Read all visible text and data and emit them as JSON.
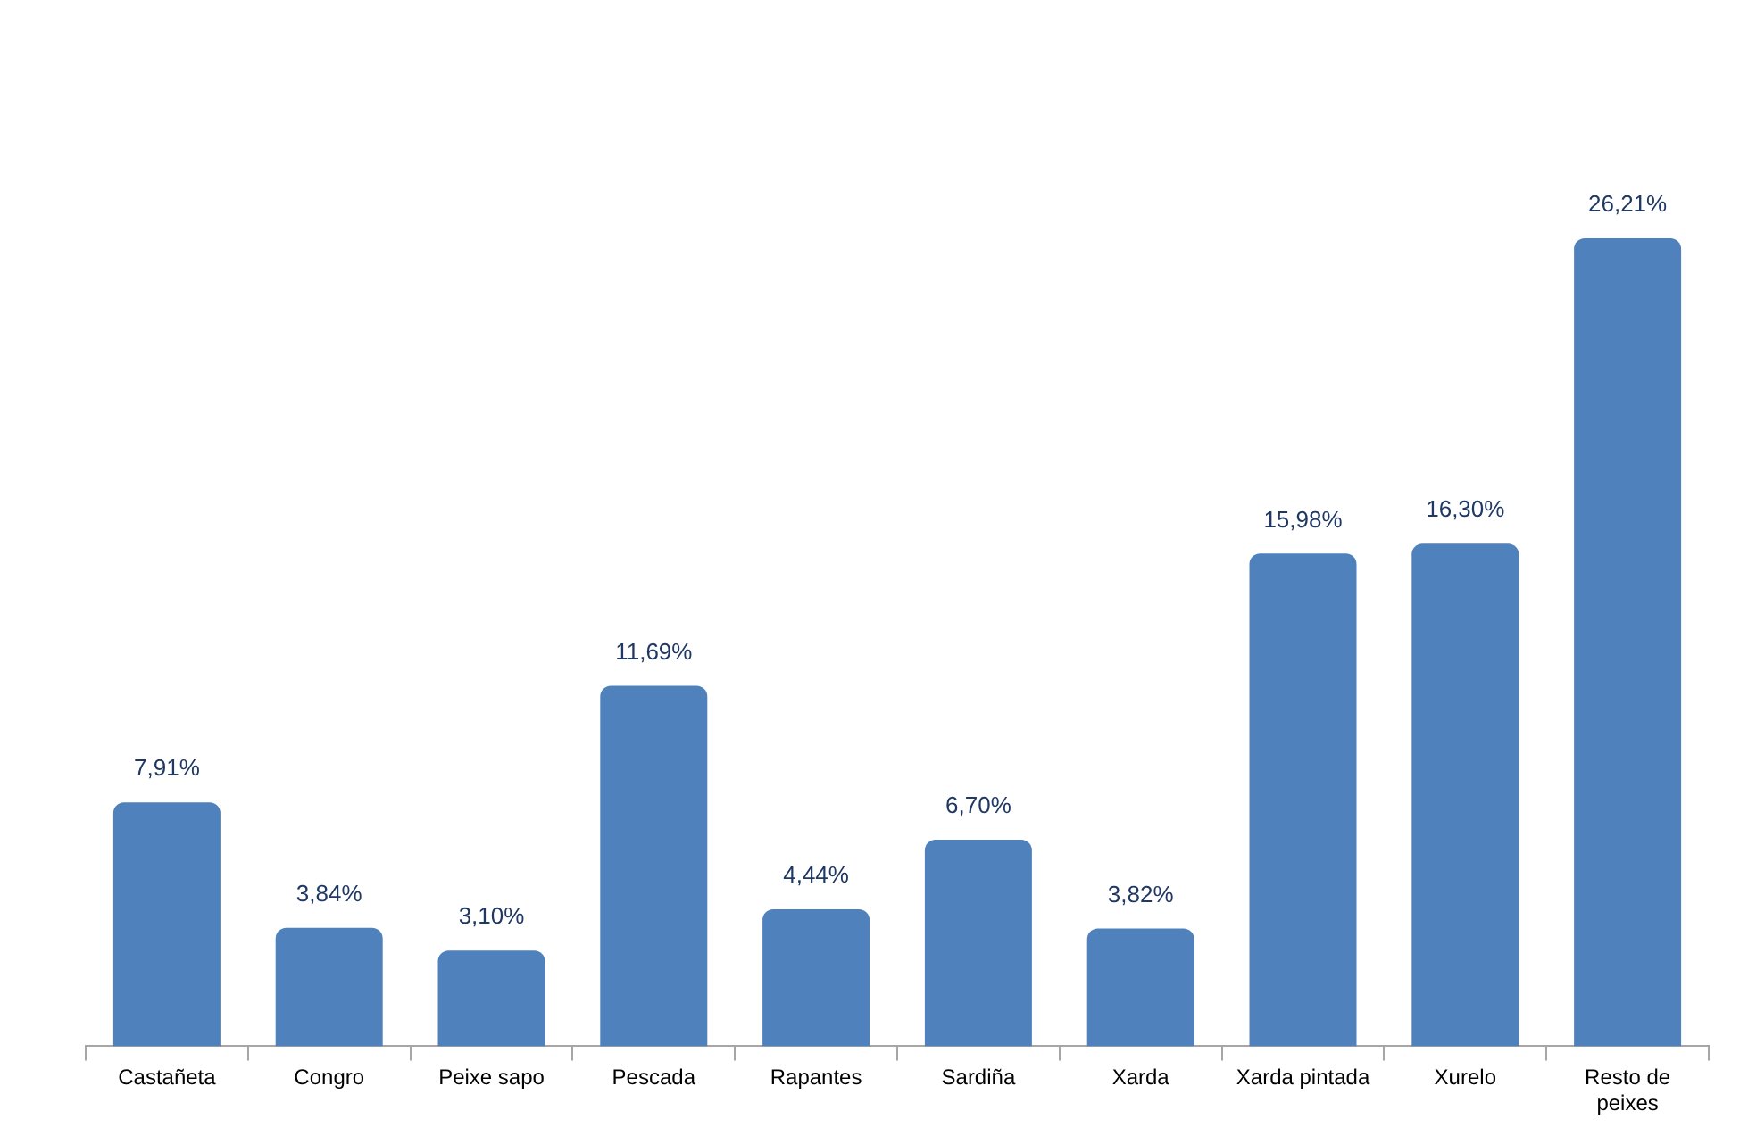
{
  "chart_data": {
    "type": "bar",
    "categories": [
      "Castañeta",
      "Congro",
      "Peixe sapo",
      "Pescada",
      "Rapantes",
      "Sardiña",
      "Xarda",
      "Xarda pintada",
      "Xurelo",
      "Resto de peixes"
    ],
    "values": [
      7.91,
      3.84,
      3.1,
      11.69,
      4.44,
      6.7,
      3.82,
      15.98,
      16.3,
      26.21
    ],
    "value_labels": [
      "7,91%",
      "3,84%",
      "3,10%",
      "11,69%",
      "4,44%",
      "6,70%",
      "3,82%",
      "15,98%",
      "16,30%",
      "26,21%"
    ],
    "color": "#4f81bd",
    "tick_labels": "x",
    "grid": false,
    "legend": false
  }
}
